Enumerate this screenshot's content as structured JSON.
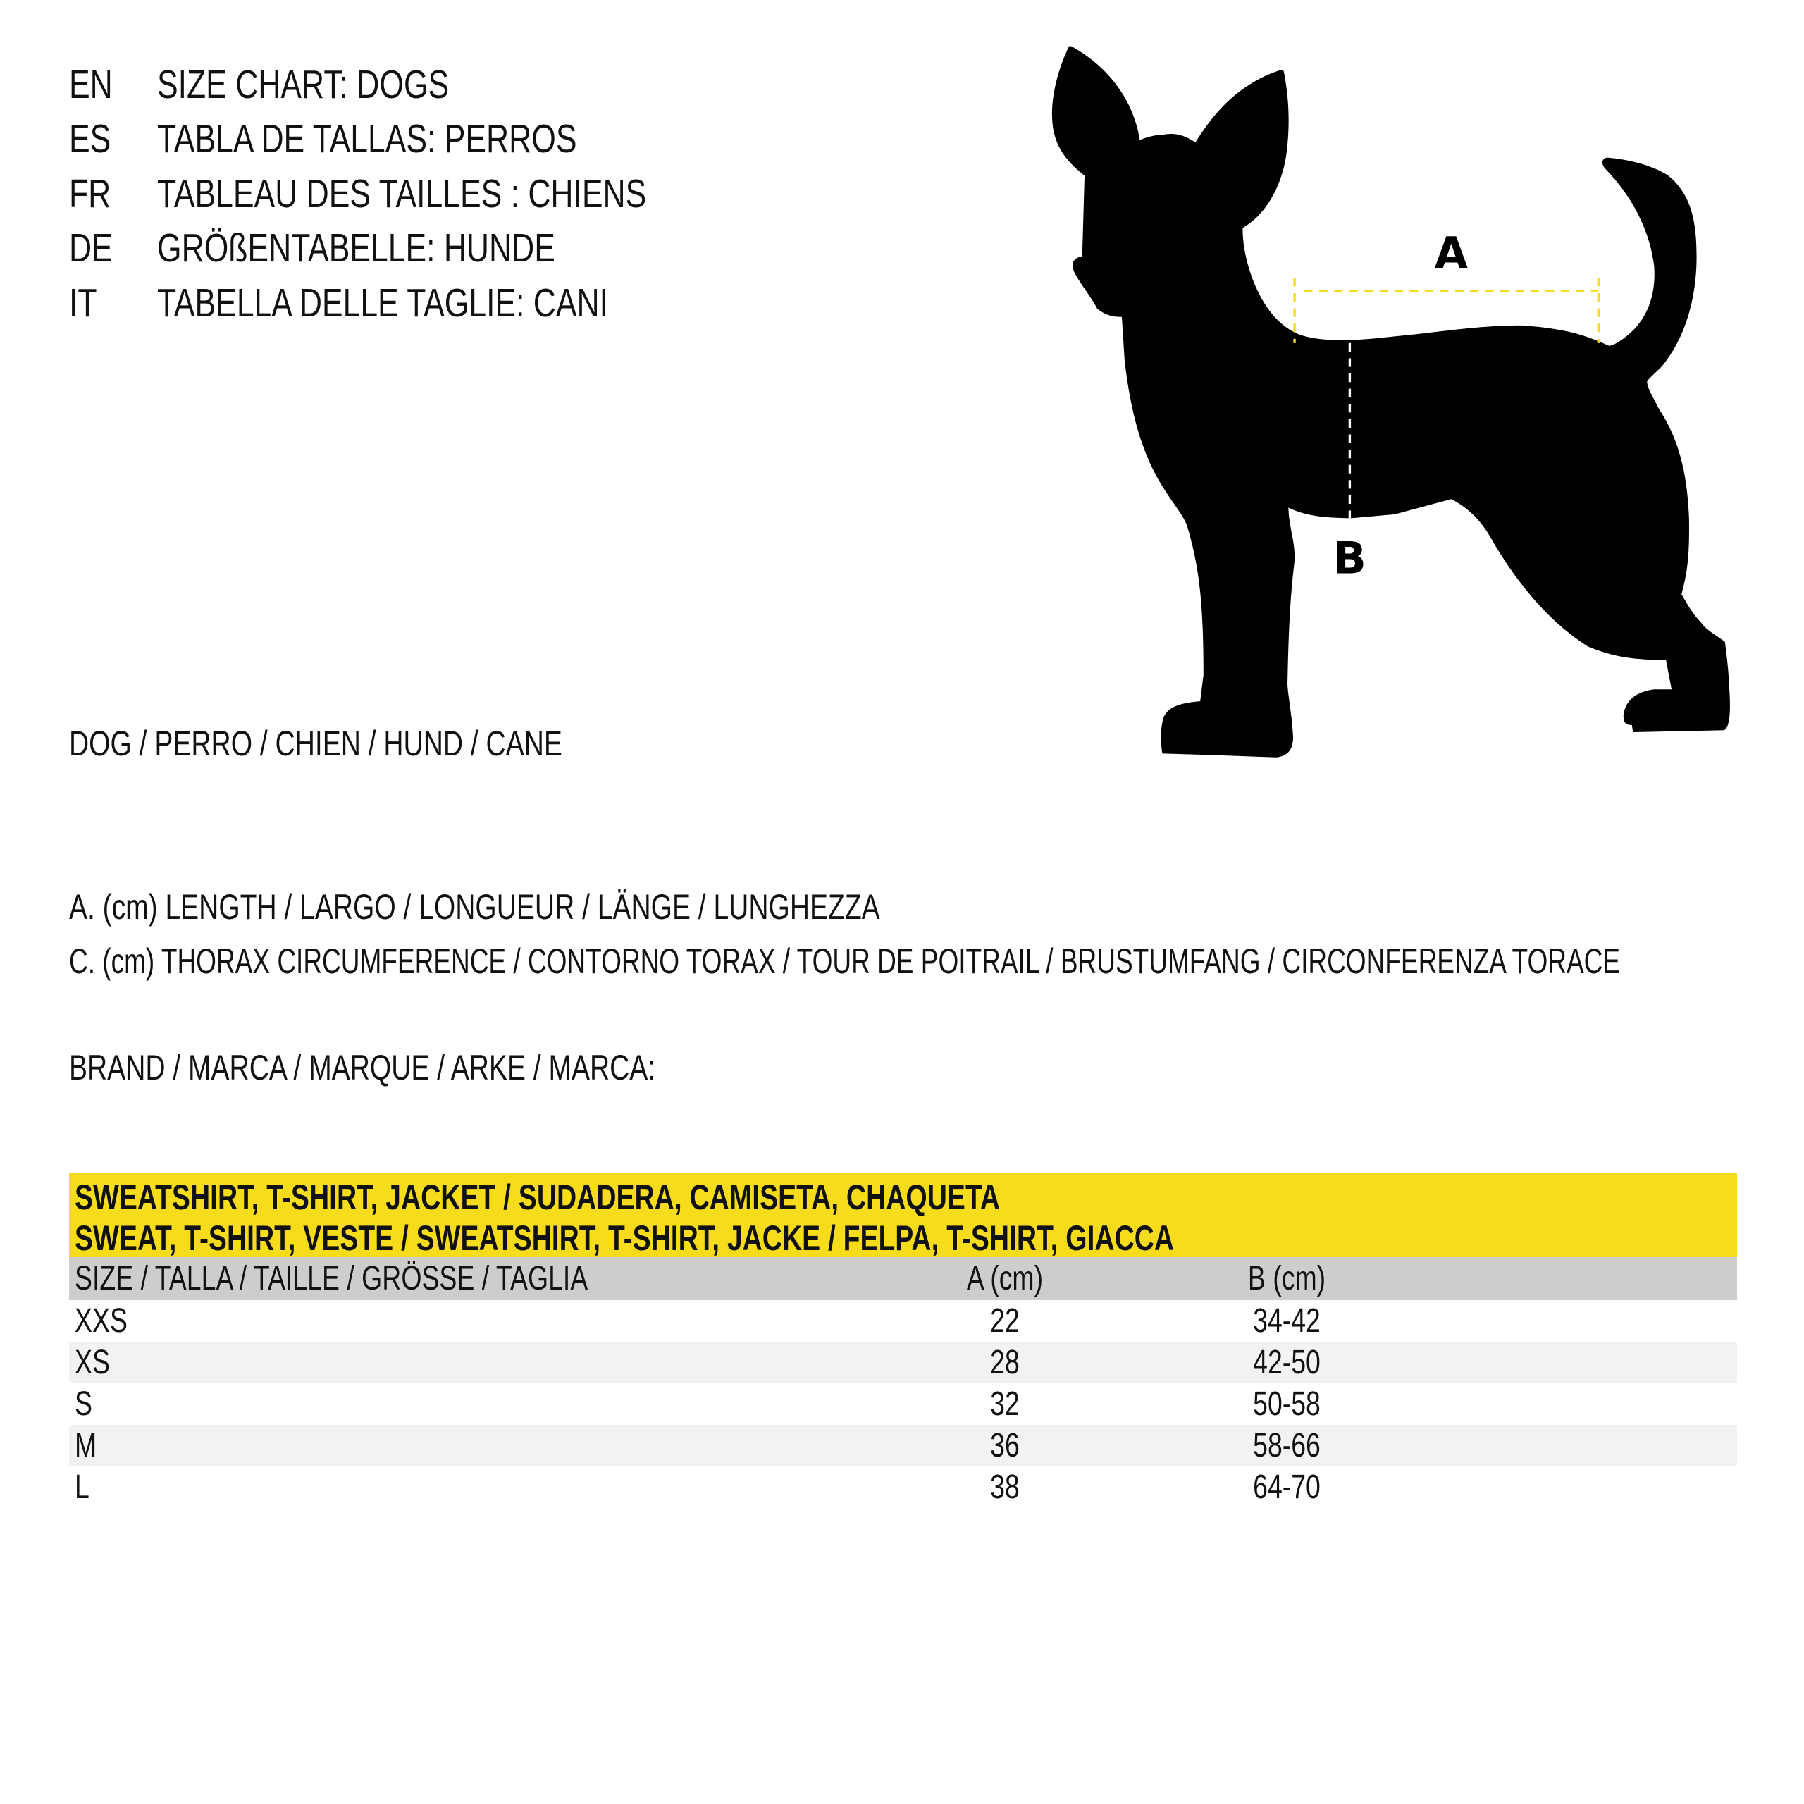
{
  "header": {
    "languages": [
      {
        "code": "EN",
        "title": "SIZE CHART: DOGS"
      },
      {
        "code": "ES",
        "title": "TABLA DE TALLAS: PERROS"
      },
      {
        "code": "FR",
        "title": "TABLEAU DES TAILLES : CHIENS"
      },
      {
        "code": "DE",
        "title": "GRÖßENTABELLE: HUNDE"
      },
      {
        "code": "IT",
        "title": "TABELLA DELLE TAGLIE: CANI"
      }
    ]
  },
  "animal_label": "DOG / PERRO / CHIEN / HUND / CANE",
  "diagram": {
    "label_a": "A",
    "label_b": "B",
    "accent_color": "#f6dc1b"
  },
  "measurements": {
    "a": "A. (cm) LENGTH / LARGO / LONGUEUR / LÄNGE / LUNGHEZZA",
    "c": "C. (cm) THORAX CIRCUMFERENCE / CONTORNO TORAX / TOUR DE POITRAIL / BRUSTUMFANG / CIRCONFERENZA TORACE"
  },
  "brand_label": "BRAND / MARCA / MARQUE / ARKE / MARCA:",
  "table": {
    "title_line1": "SWEATSHIRT, T-SHIRT, JACKET / SUDADERA, CAMISETA, CHAQUETA",
    "title_line2": "SWEAT, T-SHIRT, VESTE / SWEATSHIRT, T-SHIRT, JACKE / FELPA, T-SHIRT, GIACCA",
    "columns": [
      "SIZE / TALLA / TAILLE / GRÖSSE / TAGLIA",
      "A (cm)",
      "B (cm)"
    ],
    "rows": [
      [
        "XXS",
        "22",
        "34-42"
      ],
      [
        "XS",
        "28",
        "42-50"
      ],
      [
        "S",
        "32",
        "50-58"
      ],
      [
        "M",
        "36",
        "58-66"
      ],
      [
        "L",
        "38",
        "64-70"
      ]
    ],
    "header_color": "#f6dc1b",
    "subheader_color": "#cdcdcd",
    "alt_row_color": "#f2f2f2"
  }
}
